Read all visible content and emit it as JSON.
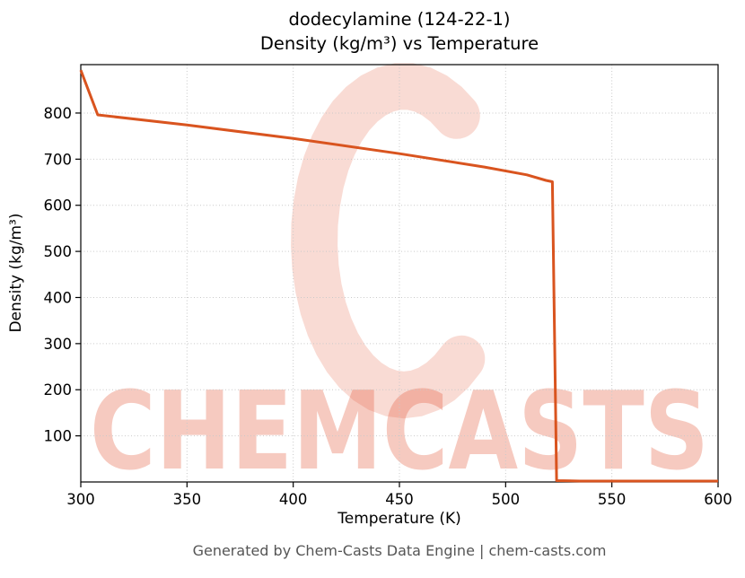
{
  "chart_data": {
    "type": "line",
    "title": "dodecylamine (124-22-1)",
    "subtitle": "Density (kg/m³) vs Temperature",
    "xlabel": "Temperature (K)",
    "ylabel": "Density (kg/m³)",
    "xlim": [
      300,
      600
    ],
    "ylim": [
      0,
      905
    ],
    "x_ticks": [
      300,
      350,
      400,
      450,
      500,
      550,
      600
    ],
    "y_ticks": [
      100,
      200,
      300,
      400,
      500,
      600,
      700,
      800
    ],
    "grid": true,
    "legend": "none",
    "line_color": "#d9541f",
    "line_width": 3,
    "series": [
      {
        "name": "density",
        "points": [
          [
            300,
            893
          ],
          [
            308,
            796
          ],
          [
            350,
            774
          ],
          [
            400,
            745
          ],
          [
            450,
            712
          ],
          [
            490,
            683
          ],
          [
            510,
            666
          ],
          [
            519,
            654
          ],
          [
            522,
            651
          ],
          [
            524,
            3
          ],
          [
            535,
            2
          ],
          [
            600,
            2
          ]
        ]
      }
    ]
  },
  "watermark": {
    "text": "CHEMCASTS",
    "color": "#e25b3a",
    "logo_opacity": 0.22,
    "text_opacity": 0.32
  },
  "footer": {
    "text": "Generated by Chem-Casts Data Engine | chem-casts.com"
  }
}
